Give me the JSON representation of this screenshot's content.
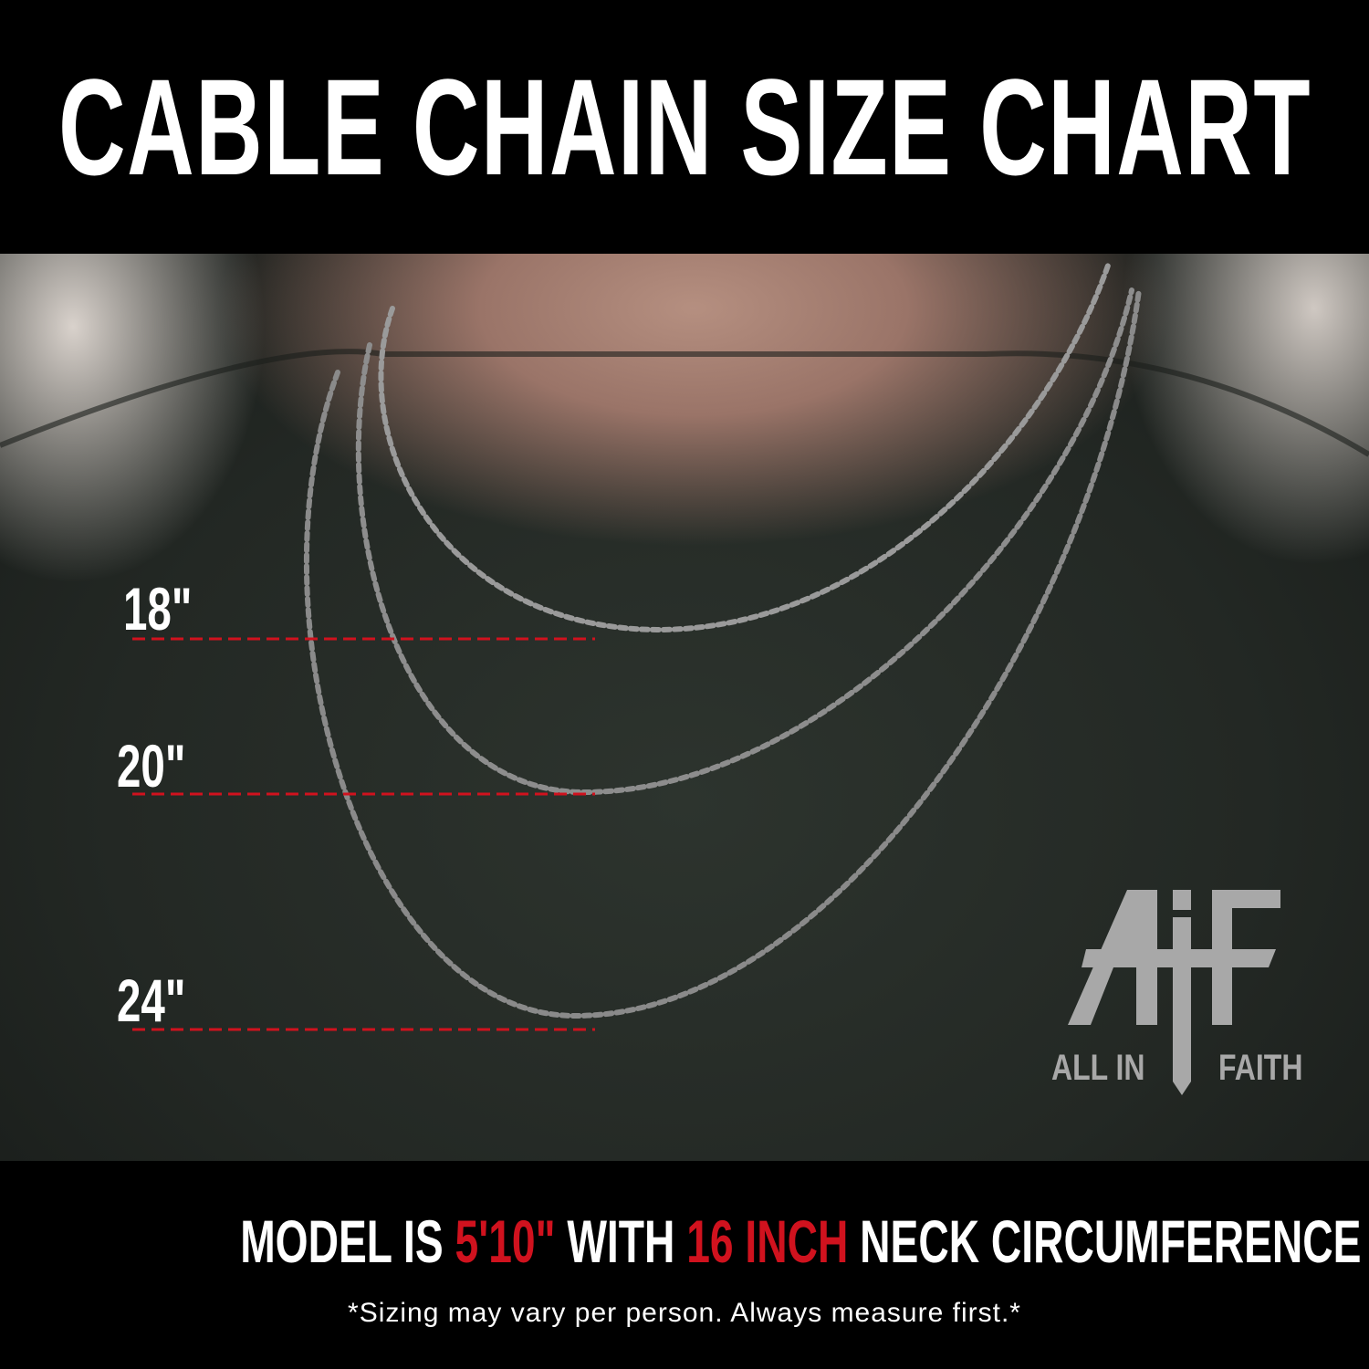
{
  "title": "CABLE CHAIN SIZE CHART",
  "sizes": [
    {
      "label": "18\""
    },
    {
      "label": "20\""
    },
    {
      "label": "24\""
    }
  ],
  "logo": {
    "mark": "AiF",
    "left_text": "ALL IN",
    "right_text": "FAITH"
  },
  "footer": {
    "part1": "MODEL IS ",
    "height": "5'10\"",
    "part2": " WITH ",
    "neck": "16 INCH",
    "part3": " NECK CIRCUMFERENCE",
    "disclaimer": "*Sizing may vary per person. Always measure first.*"
  },
  "colors": {
    "accent_red": "#d0121e",
    "header_bg": "#000000",
    "shirt": "#2a302b"
  }
}
